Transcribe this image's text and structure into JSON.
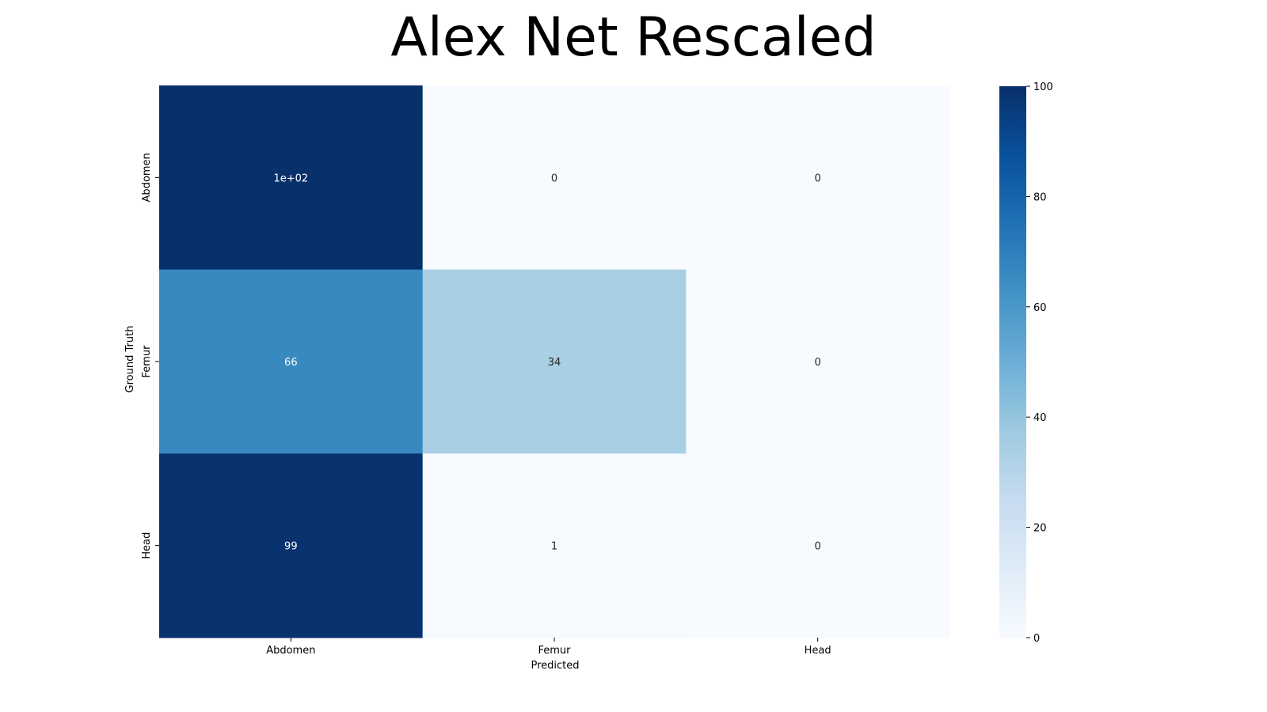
{
  "chart_data": {
    "type": "heatmap",
    "title": "Alex Net Rescaled",
    "xlabel": "Predicted",
    "ylabel": "Ground Truth",
    "x_categories": [
      "Abdomen",
      "Femur",
      "Head"
    ],
    "y_categories": [
      "Abdomen",
      "Femur",
      "Head"
    ],
    "values": [
      [
        100,
        0,
        0
      ],
      [
        66,
        34,
        0
      ],
      [
        99,
        1,
        0
      ]
    ],
    "annotations": [
      [
        "1e+02",
        "0",
        "0"
      ],
      [
        "66",
        "34",
        "0"
      ],
      [
        "99",
        "1",
        "0"
      ]
    ],
    "colorbar": {
      "range": [
        0,
        100
      ],
      "ticks": [
        "0",
        "20",
        "40",
        "60",
        "80",
        "100"
      ],
      "colormap": "Blues",
      "colors": [
        "#f7fbff",
        "#deebf7",
        "#c6dbef",
        "#9ecae1",
        "#6baed6",
        "#4292c6",
        "#2171b5",
        "#08519c",
        "#08306b"
      ]
    },
    "grid": false
  }
}
